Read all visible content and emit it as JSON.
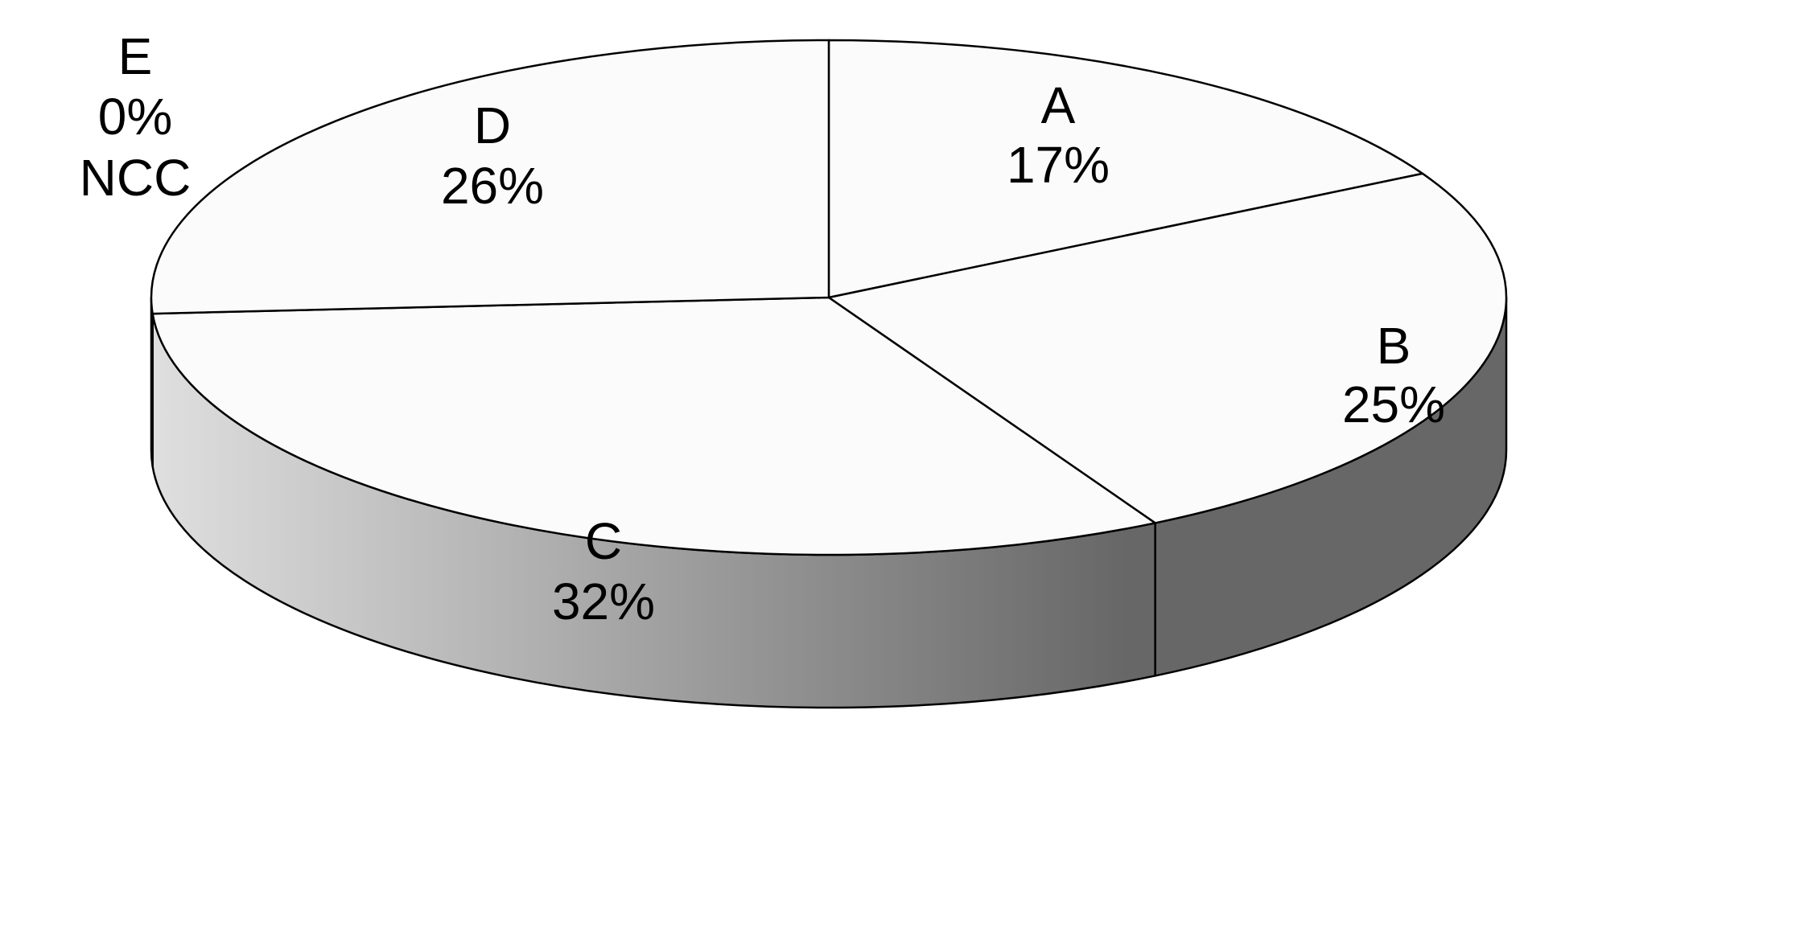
{
  "chart_data": {
    "type": "pie",
    "title": "",
    "slices": [
      {
        "label": "A",
        "value_label": "17%",
        "value": 17,
        "extra_label": ""
      },
      {
        "label": "B",
        "value_label": "25%",
        "value": 25,
        "extra_label": ""
      },
      {
        "label": "C",
        "value_label": "32%",
        "value": 32,
        "extra_label": ""
      },
      {
        "label": "D",
        "value_label": "26%",
        "value": 26,
        "extra_label": ""
      },
      {
        "label": "E",
        "value_label": "0%",
        "value": 0,
        "extra_label": "NCC"
      }
    ],
    "colors": {
      "top": "#fbfbfb",
      "side_light": "#dedede",
      "side_dark": "#676767",
      "outline": "#000000"
    }
  }
}
